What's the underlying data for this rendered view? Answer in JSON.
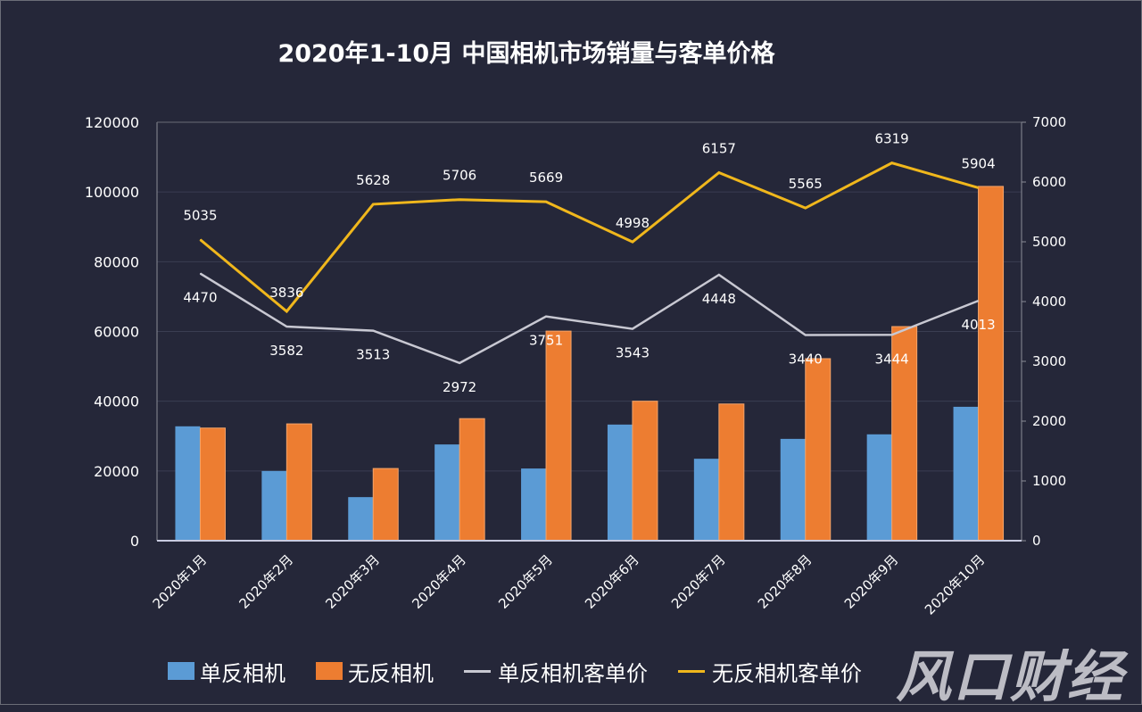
{
  "chart_data": {
    "type": "bar",
    "title": "2020年1-10月 中国相机市场销量与客单价格",
    "categories": [
      "2020年1月",
      "2020年2月",
      "2020年3月",
      "2020年4月",
      "2020年5月",
      "2020年6月",
      "2020年7月",
      "2020年8月",
      "2020年9月",
      "2020年10月"
    ],
    "left_axis": {
      "range": [
        0,
        120000
      ],
      "ticks": [
        "0",
        "20000",
        "40000",
        "60000",
        "80000",
        "100000",
        "120000"
      ]
    },
    "right_axis": {
      "range": [
        0,
        7000
      ],
      "ticks": [
        "0",
        "1000",
        "2000",
        "3000",
        "4000",
        "5000",
        "6000",
        "7000"
      ]
    },
    "grid": true,
    "legend_position": "bottom",
    "series": [
      {
        "name": "单反相机",
        "type": "bar",
        "axis": "left",
        "color": "#5b9bd5",
        "values": [
          32800,
          20000,
          12500,
          27600,
          20700,
          33300,
          23500,
          29200,
          30500,
          38400
        ]
      },
      {
        "name": "无反相机",
        "type": "bar",
        "axis": "left",
        "color": "#ed7d31",
        "values": [
          32300,
          33500,
          20700,
          35000,
          60100,
          40000,
          39200,
          52200,
          61400,
          101600
        ]
      },
      {
        "name": "单反相机客单价",
        "type": "line",
        "axis": "right",
        "color": "#c8c8d2",
        "values": [
          4470,
          3582,
          3513,
          2972,
          3751,
          3543,
          4448,
          3440,
          3444,
          4013
        ],
        "labels": [
          "4470",
          "3582",
          "3513",
          "2972",
          "3751",
          "3543",
          "4448",
          "3440",
          "3444",
          "4013"
        ]
      },
      {
        "name": "无反相机客单价",
        "type": "line",
        "axis": "right",
        "color": "#f0b71c",
        "values": [
          5035,
          3836,
          5628,
          5706,
          5669,
          4998,
          6157,
          5565,
          6319,
          5904
        ],
        "labels": [
          "5035",
          "3836",
          "5628",
          "5706",
          "5669",
          "4998",
          "6157",
          "5565",
          "6319",
          "5904"
        ]
      }
    ]
  },
  "legend": {
    "items": [
      {
        "label": "单反相机",
        "color": "#5b9bd5"
      },
      {
        "label": "无反相机",
        "color": "#ed7d31"
      },
      {
        "label": "单反相机客单价",
        "color": "#c8c8d2"
      },
      {
        "label": "无反相机客单价",
        "color": "#f0b71c"
      }
    ]
  },
  "watermark": "风口财经"
}
